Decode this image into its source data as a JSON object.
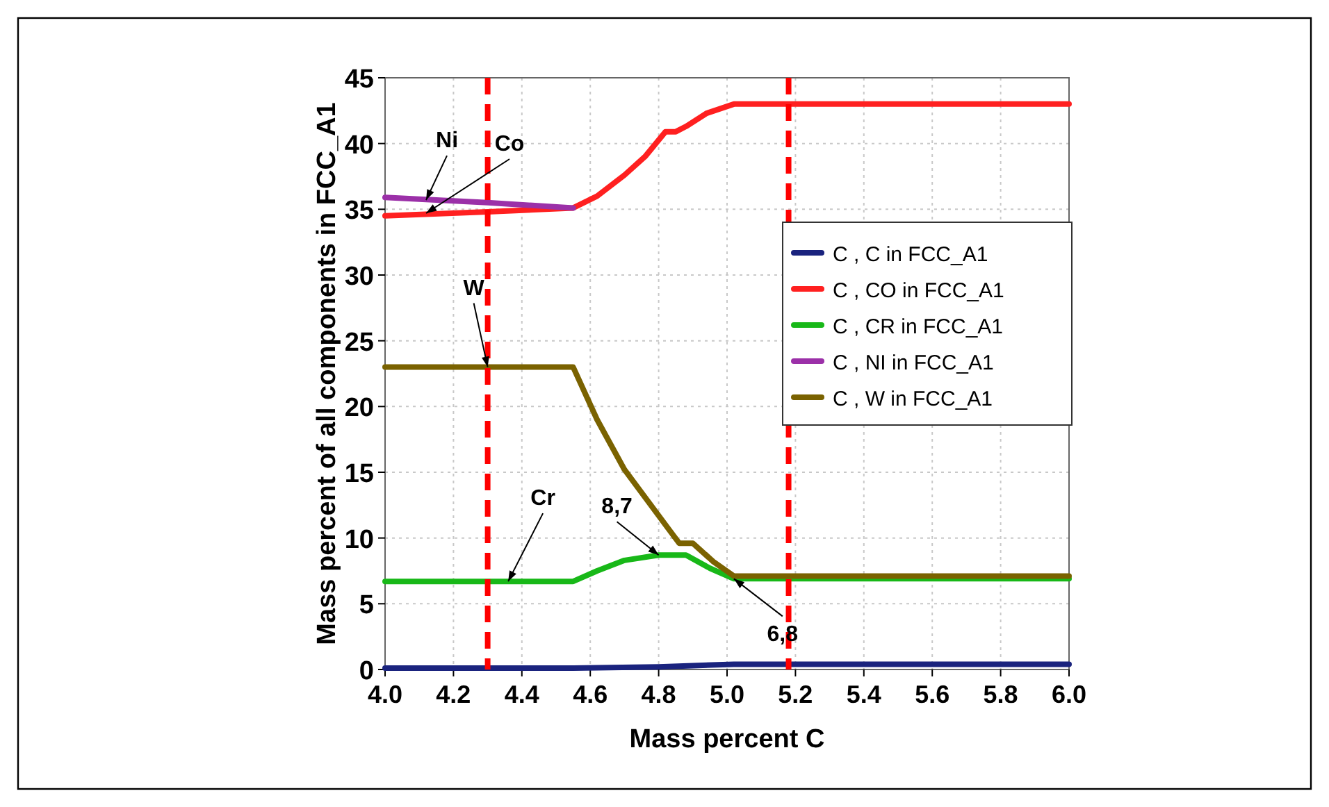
{
  "chart_data": {
    "type": "line",
    "xlabel": "Mass percent C",
    "ylabel": "Mass percent of all components in FCC_A1",
    "xlim": [
      4.0,
      6.0
    ],
    "xticks": [
      {
        "value": 4.0,
        "label": "4.0"
      },
      4.2,
      4.4,
      4.6,
      4.8,
      {
        "value": 5.0,
        "label": "5.0"
      },
      5.2,
      5.4,
      5.6,
      5.8,
      {
        "value": 6.0,
        "label": "6.0"
      }
    ],
    "ylim": [
      0,
      45
    ],
    "yticks": [
      0,
      5,
      10,
      15,
      20,
      25,
      30,
      35,
      40,
      45
    ],
    "grid": true,
    "legend": "right",
    "line_style": "solid",
    "marker": "none",
    "series": [
      {
        "name": "C , C in FCC_A1",
        "color": "#1a237e",
        "x": [
          4.0,
          4.55,
          4.8,
          5.02,
          6.0
        ],
        "values": [
          0.1,
          0.1,
          0.2,
          0.4,
          0.4
        ]
      },
      {
        "name": "C , CO in FCC_A1",
        "color": "#ff2020",
        "x": [
          4.0,
          4.3,
          4.55,
          4.62,
          4.7,
          4.76,
          4.82,
          4.85,
          4.88,
          4.94,
          5.02,
          6.0
        ],
        "values": [
          34.5,
          34.8,
          35.1,
          36.0,
          37.6,
          39.0,
          40.9,
          40.9,
          41.3,
          42.3,
          43.0,
          43.0
        ]
      },
      {
        "name": "C , CR in FCC_A1",
        "color": "#18b818",
        "x": [
          4.0,
          4.55,
          4.62,
          4.7,
          4.8,
          4.88,
          4.95,
          5.02,
          6.0
        ],
        "values": [
          6.7,
          6.7,
          7.5,
          8.3,
          8.7,
          8.7,
          7.7,
          6.9,
          6.9
        ]
      },
      {
        "name": "C , NI in FCC_A1",
        "color": "#9b30a8",
        "x": [
          4.0,
          4.3,
          4.55
        ],
        "values": [
          35.9,
          35.5,
          35.1
        ]
      },
      {
        "name": "C , W in FCC_A1",
        "color": "#7a6200",
        "x": [
          4.0,
          4.55,
          4.62,
          4.7,
          4.86,
          4.9,
          4.96,
          5.02,
          6.0
        ],
        "values": [
          23.0,
          23.0,
          19.0,
          15.2,
          9.6,
          9.6,
          8.2,
          7.1,
          7.1
        ]
      }
    ],
    "ref_lines": [
      {
        "axis": "x",
        "value": 4.3,
        "color": "#ff0000",
        "line_style": "dashed"
      },
      {
        "axis": "x",
        "value": 5.18,
        "color": "#ff0000",
        "line_style": "dashed"
      }
    ],
    "annotations": [
      {
        "text": "Ni",
        "x": 4.12,
        "y": 35.7
      },
      {
        "text": "Co",
        "x": 4.12,
        "y": 34.7
      },
      {
        "text": "W",
        "x": 4.3,
        "y": 23.0
      },
      {
        "text": "Cr",
        "x": 4.36,
        "y": 6.7
      },
      {
        "text": "8,7",
        "x": 4.8,
        "y": 8.7
      },
      {
        "text": "6,8",
        "x": 5.02,
        "y": 6.9
      }
    ]
  }
}
